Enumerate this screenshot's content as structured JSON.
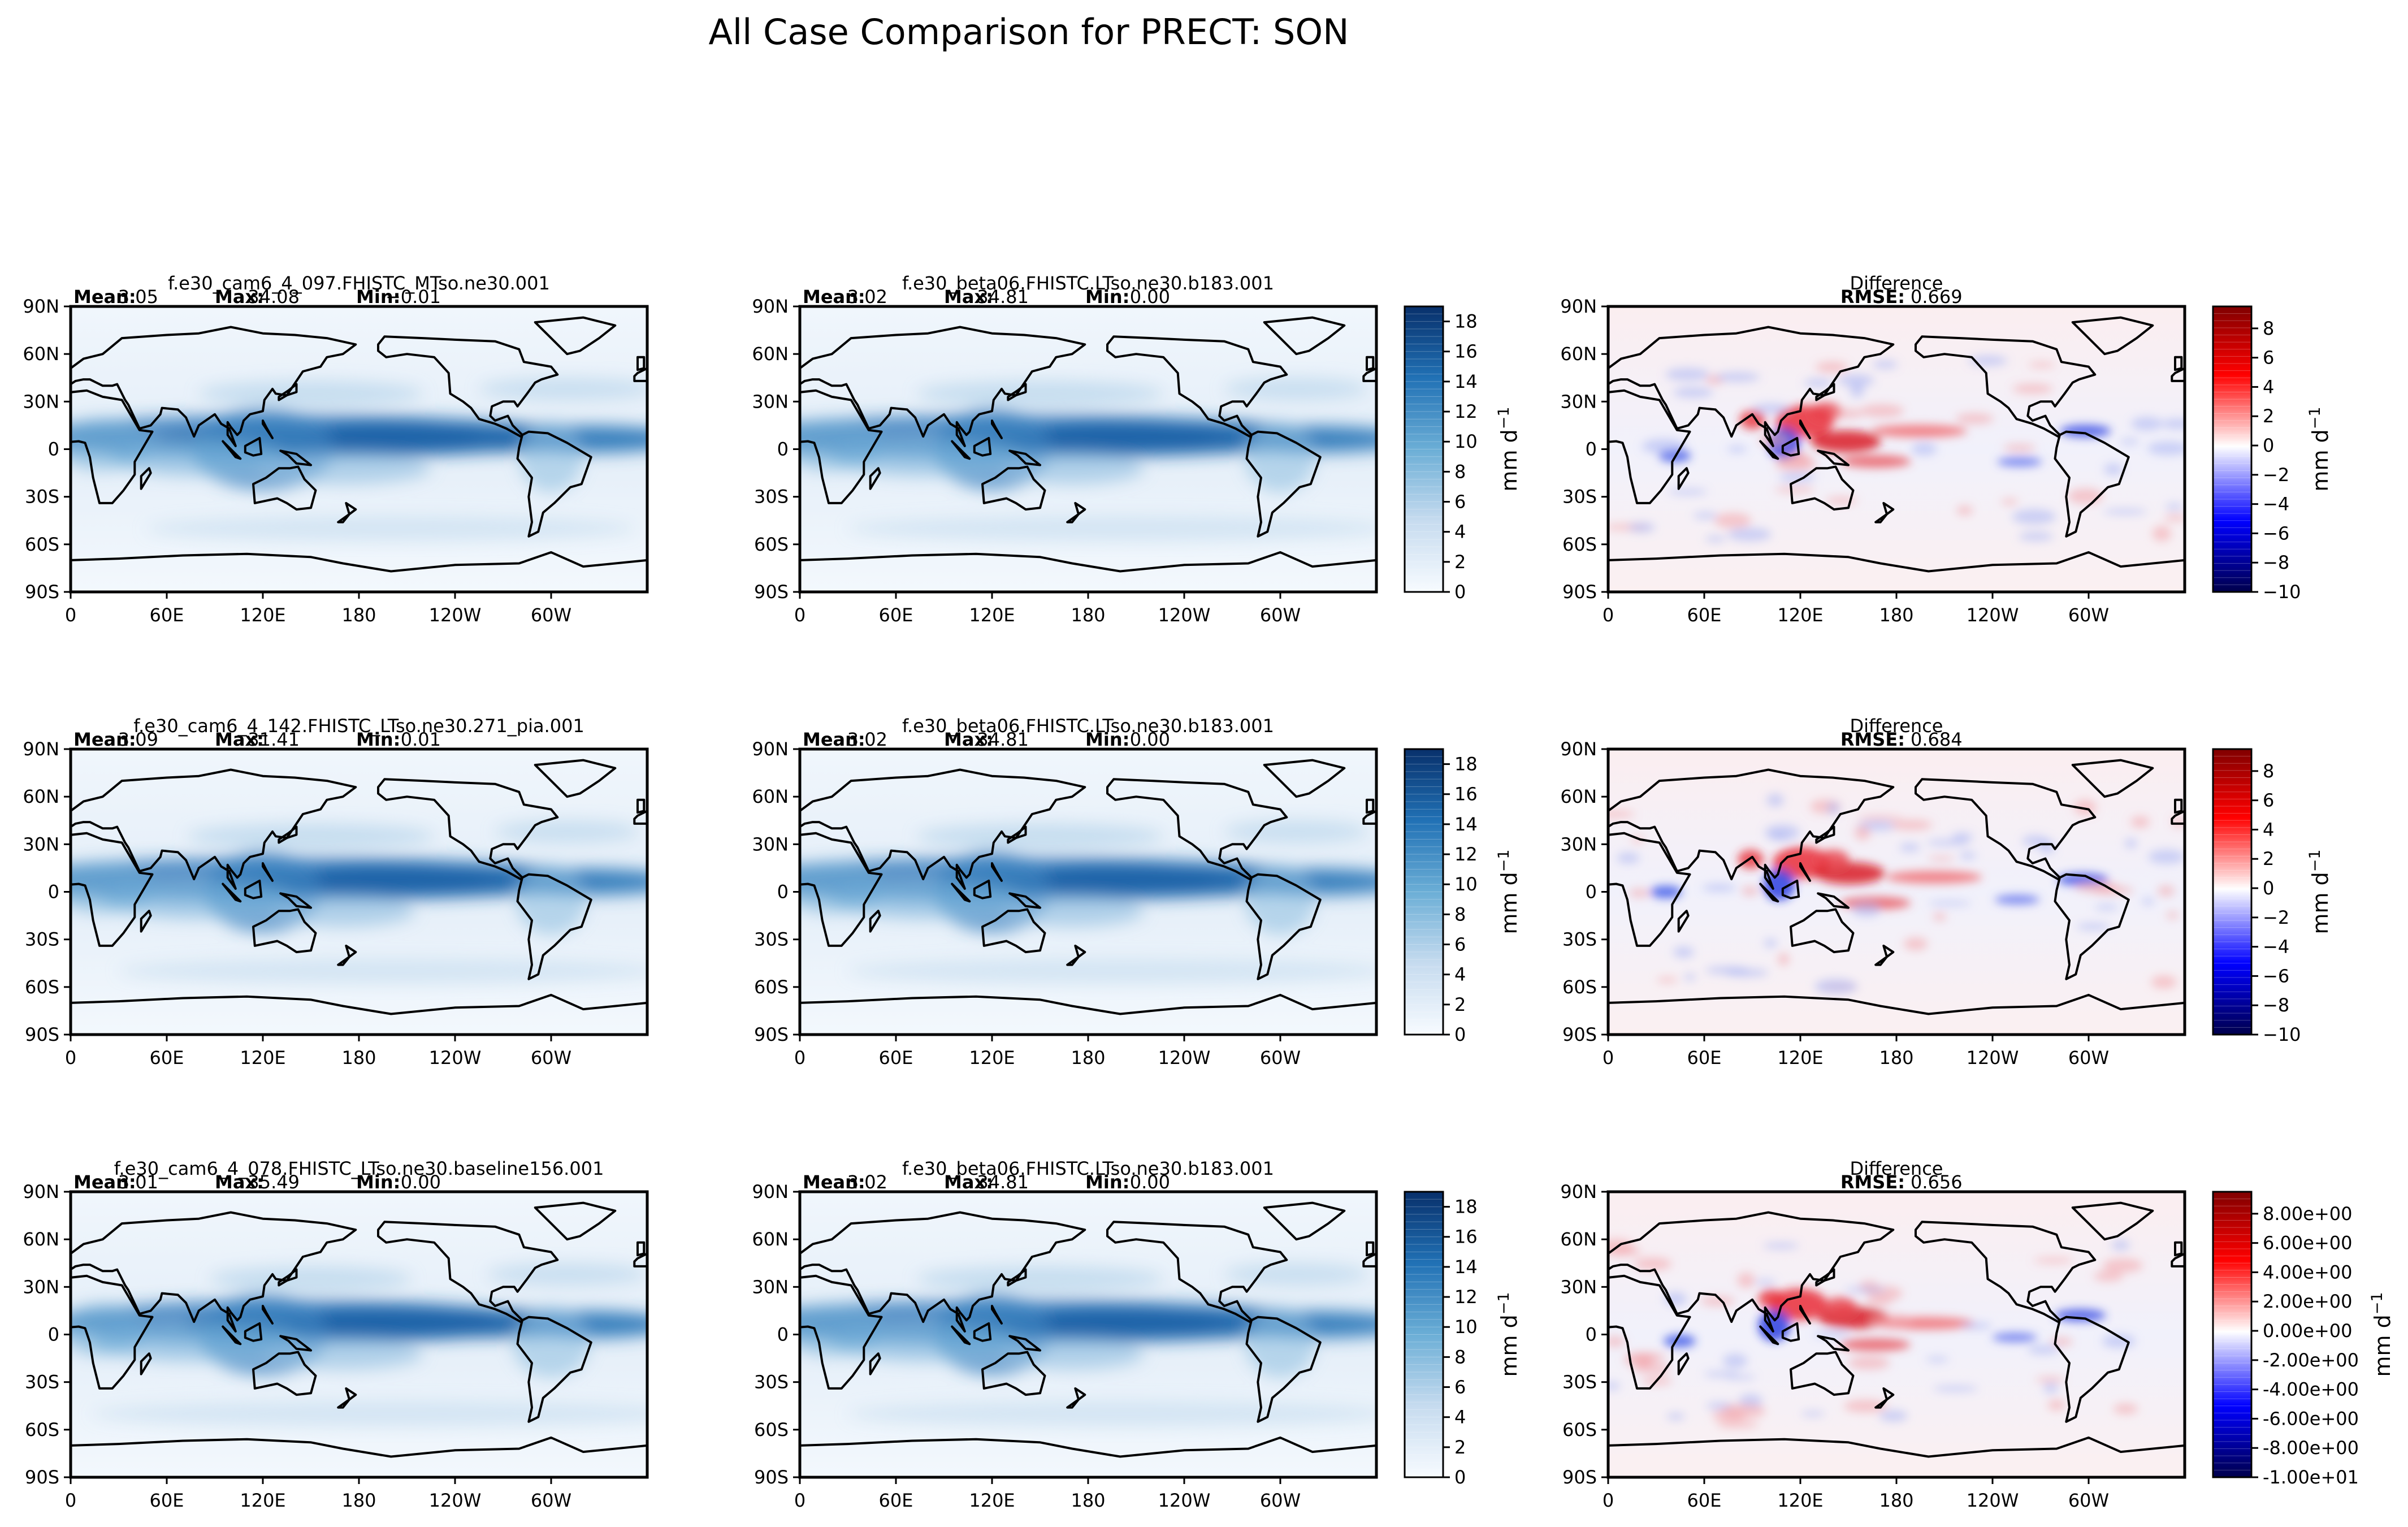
{
  "figure": {
    "title": "All Case Comparison for PRECT: SON"
  },
  "chart_data": {
    "type": "heatmap",
    "figure_title": "All Case Comparison for PRECT: SON",
    "variable": "PRECT",
    "season": "SON",
    "map_axes": {
      "xticklabels": [
        "0",
        "60E",
        "120E",
        "180",
        "120W",
        "60W"
      ],
      "yticklabels": [
        "90N",
        "60N",
        "30N",
        "0",
        "30S",
        "60S",
        "90S"
      ],
      "lon_range": [
        0,
        360
      ],
      "lat_range": [
        -90,
        90
      ]
    },
    "stat_labels": {
      "mean": "Mean:",
      "max": "Max:",
      "min": "Min:",
      "rmse": "RMSE:"
    },
    "colorbar_label": "mm d",
    "colorbar_label_sup": "−1",
    "precip_colorbar": {
      "cmap": "Blues",
      "range": [
        0,
        19
      ],
      "ticks": [
        "0",
        "2",
        "4",
        "6",
        "8",
        "10",
        "12",
        "14",
        "16",
        "18"
      ]
    },
    "diff_colorbar": {
      "cmap": "seismic",
      "range": [
        -10,
        9.5
      ],
      "ticks_short": [
        "−10",
        "−8",
        "−6",
        "−4",
        "−2",
        "0",
        "2",
        "4",
        "6",
        "8"
      ],
      "ticks_sci": [
        "-1.00e+01",
        "-8.00e+00",
        "-6.00e+00",
        "-4.00e+00",
        "-2.00e+00",
        "0.00e+00",
        "2.00e+00",
        "4.00e+00",
        "6.00e+00",
        "8.00e+00"
      ]
    },
    "rows": [
      {
        "test": {
          "case": "f.e30_cam6_4_097.FHISTC_MTso.ne30.001",
          "mean": "3.05",
          "max": "34.08",
          "min": "−0.01"
        },
        "ref": {
          "case": "f.e30_beta06.FHISTC.LTso.ne30.b183.001",
          "mean": "3.02",
          "max": "34.81",
          "min": "0.00"
        },
        "diff": {
          "title": "Difference",
          "rmse": "0.669"
        },
        "diff_tick_style": "short"
      },
      {
        "test": {
          "case": "f.e30_cam6_4_142.FHISTC_LTso.ne30.271_pia.001",
          "mean": "3.09",
          "max": "31.41",
          "min": "0.01"
        },
        "ref": {
          "case": "f.e30_beta06.FHISTC.LTso.ne30.b183.001",
          "mean": "3.02",
          "max": "34.81",
          "min": "0.00"
        },
        "diff": {
          "title": "Difference",
          "rmse": "0.684"
        },
        "diff_tick_style": "short"
      },
      {
        "test": {
          "case": "f.e30_cam6_4_078.FHISTC_LTso.ne30.baseline156.001",
          "mean": "3.01",
          "max": "35.49",
          "min": "0.00"
        },
        "ref": {
          "case": "f.e30_beta06.FHISTC.LTso.ne30.b183.001",
          "mean": "3.02",
          "max": "34.81",
          "min": "0.00"
        },
        "diff": {
          "title": "Difference",
          "rmse": "0.656"
        },
        "diff_tick_style": "sci"
      }
    ]
  }
}
